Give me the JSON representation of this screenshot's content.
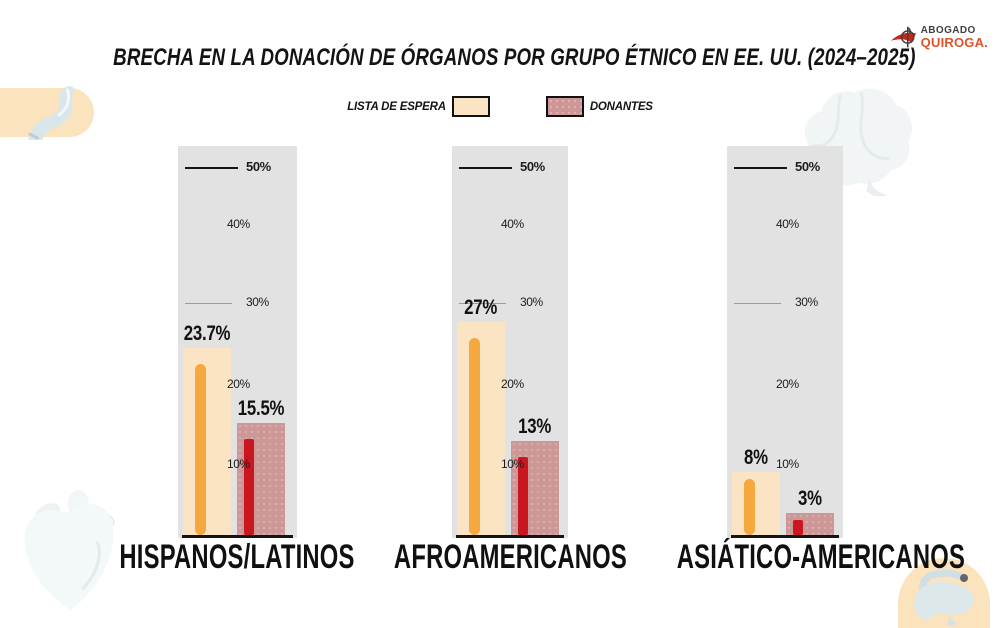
{
  "header": {
    "title": "BRECHA EN LA DONACIÓN DE ÓRGANOS POR GRUPO ÉTNICO EN EE. UU. (2024–2025)"
  },
  "logo": {
    "name_top": "ABOGADO",
    "name_bottom": "QUIROGA."
  },
  "legend": {
    "items": [
      {
        "label": "LISTA DE ESPERA",
        "swatch": "waitlist",
        "color": "#fbe4c3"
      },
      {
        "label": "DONANTES",
        "swatch": "donors",
        "color": "#cd9798"
      }
    ]
  },
  "axis": {
    "yticks": [
      {
        "value": 50,
        "label": "50%",
        "line": "dark",
        "bold": true
      },
      {
        "value": 40,
        "label": "40%",
        "line": "none",
        "bold": false
      },
      {
        "value": 30,
        "label": "30%",
        "line": "light",
        "bold": false
      },
      {
        "value": 20,
        "label": "20%",
        "line": "none",
        "bold": false
      },
      {
        "value": 10,
        "label": "10%",
        "line": "none",
        "bold": false
      }
    ]
  },
  "chart_data": {
    "type": "bar",
    "title": "BRECHA EN LA DONACIÓN DE ÓRGANOS POR GRUPO ÉTNICO EN EE. UU. (2024–2025)",
    "categories": [
      "HISPANOS/LATINOS",
      "AFROAMERICANOS",
      "ASIÁTICO-AMERICANOS"
    ],
    "series": [
      {
        "name": "LISTA DE ESPERA",
        "values": [
          23.7,
          27,
          8
        ],
        "labels": [
          "23.7%",
          "27%",
          "8%"
        ],
        "bar_color": "#fbe4c3",
        "accent_color": "#f5a83d"
      },
      {
        "name": "DONANTES",
        "values": [
          15.5,
          13,
          3
        ],
        "labels": [
          "15.5%",
          "13%",
          "3%"
        ],
        "bar_color": "#cd9798",
        "accent_color": "#c9161f"
      }
    ],
    "ylim": [
      0,
      55
    ],
    "yticks": [
      10,
      20,
      30,
      40,
      50
    ],
    "grid": "tick lines drawn only at 50% (dark) and 30% (light)",
    "legend_position": "top"
  },
  "colors": {
    "panel_bg": "#e2e2e2",
    "waitlist_fill": "#fbe4c3",
    "waitlist_accent": "#f5a83d",
    "donor_fill": "#cd9798",
    "donor_accent": "#c9161f",
    "baseline": "#141414",
    "logo_red": "#c3281f",
    "logo_orange": "#e0522a",
    "decoration_cream": "#fbe3bd"
  },
  "decorations": {
    "organs": [
      "stomach",
      "brain",
      "heart",
      "liver"
    ]
  }
}
